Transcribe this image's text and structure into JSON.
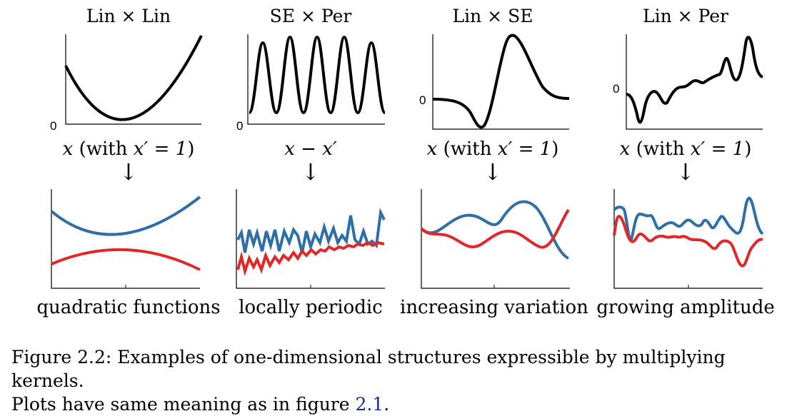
{
  "panels": [
    {
      "title": "Lin × Lin",
      "x_expr_prefix": "x",
      "x_expr_upright": " (with ",
      "x_expr_prime": "x′ = 1",
      "x_expr_close": ")",
      "y_tick_label": "0",
      "bottom_caption": "quadratic functions"
    },
    {
      "title": "SE × Per",
      "x_expr_prefix": "x − x′",
      "x_expr_upright": "",
      "x_expr_prime": "",
      "x_expr_close": "",
      "y_tick_label": "0",
      "bottom_caption": "locally periodic"
    },
    {
      "title": "Lin × SE",
      "x_expr_prefix": "x",
      "x_expr_upright": " (with ",
      "x_expr_prime": "x′ = 1",
      "x_expr_close": ")",
      "y_tick_label": "0",
      "bottom_caption": "increasing variation"
    },
    {
      "title": "Lin × Per",
      "x_expr_prefix": "x",
      "x_expr_upright": " (with ",
      "x_expr_prime": "x′ = 1",
      "x_expr_close": ")",
      "y_tick_label": "0",
      "bottom_caption": "growing amplitude"
    }
  ],
  "arrow_glyph": "↓",
  "caption": {
    "line1": "Figure 2.2: Examples of one-dimensional structures expressible by multiplying kernels.",
    "line2_prefix": "Plots have same meaning as in figure ",
    "line2_ref": "2.1",
    "line2_suffix": "."
  },
  "colors": {
    "kernel": "#000000",
    "sample_blue": "#2f6fa8",
    "sample_red": "#e02828",
    "axis": "#000000"
  }
}
